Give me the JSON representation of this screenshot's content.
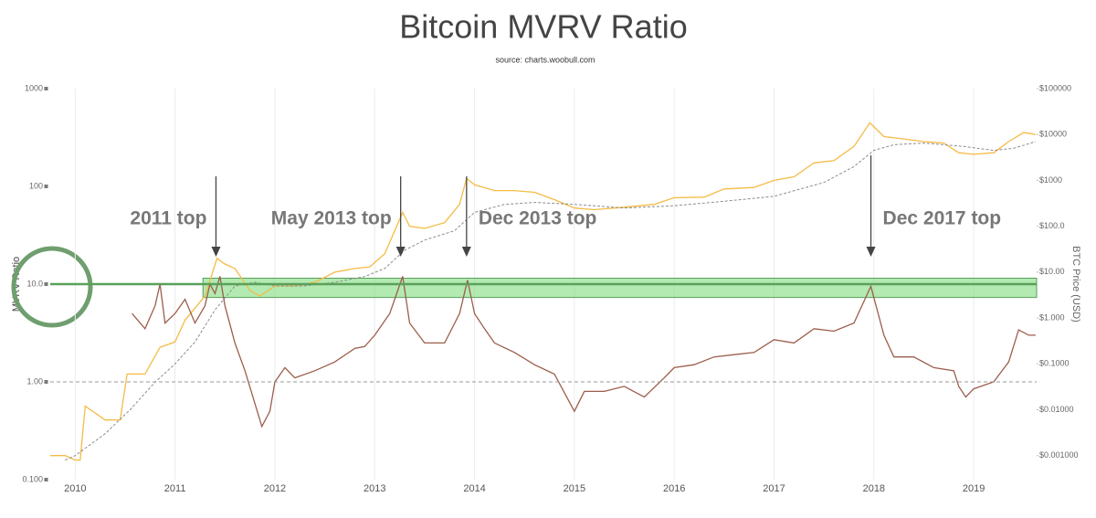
{
  "chart_data": {
    "type": "line",
    "title": "Bitcoin MVRV Ratio",
    "subtitle": "source: charts.woobull.com",
    "y_label": "MVRV Ratio",
    "y2_label": "BTC Price (USD)",
    "xlim": [
      2009.75,
      2019.63
    ],
    "xticks": [
      2010,
      2011,
      2012,
      2013,
      2014,
      2015,
      2016,
      2017,
      2018,
      2019
    ],
    "ylim": [
      0.1,
      1000
    ],
    "yticks": [
      1000,
      100,
      {
        "value": 10,
        "label": "10.0"
      },
      {
        "value": 1,
        "label": "1.00"
      },
      {
        "value": 0.1,
        "label": "0.100"
      }
    ],
    "y2lim": [
      0.0003,
      100000
    ],
    "y2ticks": [
      {
        "value": 100000,
        "label": "$100000"
      },
      {
        "value": 10000,
        "label": "$10000"
      },
      {
        "value": 1000,
        "label": "$1000"
      },
      {
        "value": 100,
        "label": "$100.0"
      },
      {
        "value": 10,
        "label": "$10.00"
      },
      {
        "value": 1,
        "label": "$1.000"
      },
      {
        "value": 0.1,
        "label": "$0.1000"
      },
      {
        "value": 0.01,
        "label": "$0.01000"
      },
      {
        "value": 0.001,
        "label": "$0.001000"
      }
    ],
    "log_scale": true,
    "grid": "x",
    "reference_lines": [
      {
        "value": 1,
        "color": "#999999",
        "dashed": true
      },
      {
        "value": 10,
        "color": "#5aa05a",
        "dashed": false
      }
    ],
    "highlight_band": {
      "x0": 2011.28,
      "range": [
        7.3,
        11.5
      ],
      "color": "#7fdc7f"
    },
    "annotations": [
      {
        "text": "2011 top",
        "x": 2011.41,
        "side": "left"
      },
      {
        "text": "May 2013 top",
        "x": 2013.26,
        "side": "left"
      },
      {
        "text": "Dec 2013 top",
        "x": 2013.92,
        "side": "right"
      },
      {
        "text": "Dec 2017 top",
        "x": 2017.97,
        "side": "right"
      }
    ],
    "series": [
      {
        "color": "#f5bb45",
        "axis": "y2",
        "dashed": false,
        "x": [
          2009.75,
          2009.9,
          2010.0,
          2010.05,
          2010.1,
          2010.3,
          2010.45,
          2010.52,
          2010.7,
          2010.85,
          2011.0,
          2011.1,
          2011.3,
          2011.42,
          2011.5,
          2011.6,
          2011.75,
          2011.85,
          2012.0,
          2012.2,
          2012.4,
          2012.6,
          2012.8,
          2012.95,
          2013.1,
          2013.28,
          2013.35,
          2013.5,
          2013.7,
          2013.85,
          2013.92,
          2014.0,
          2014.2,
          2014.4,
          2014.6,
          2014.8,
          2015.0,
          2015.2,
          2015.5,
          2015.8,
          2016.0,
          2016.3,
          2016.5,
          2016.8,
          2017.0,
          2017.2,
          2017.4,
          2017.6,
          2017.8,
          2017.96,
          2018.1,
          2018.3,
          2018.5,
          2018.7,
          2018.85,
          2019.0,
          2019.2,
          2019.35,
          2019.5,
          2019.62
        ],
        "values": [
          0.001,
          0.001,
          0.0008,
          0.0008,
          0.012,
          0.006,
          0.006,
          0.06,
          0.06,
          0.23,
          0.3,
          0.9,
          3,
          20,
          15,
          12,
          4,
          3,
          5,
          5,
          6,
          10,
          12,
          13,
          25,
          200,
          100,
          90,
          120,
          300,
          1100,
          800,
          600,
          600,
          550,
          380,
          250,
          230,
          260,
          300,
          420,
          430,
          650,
          700,
          1000,
          1200,
          2400,
          2700,
          5500,
          18000,
          9000,
          8000,
          7000,
          6500,
          4000,
          3700,
          4000,
          7000,
          11000,
          10000
        ]
      },
      {
        "color": "#8c8c8c",
        "axis": "y2",
        "dashed": true,
        "x": [
          2009.9,
          2010.0,
          2010.3,
          2010.55,
          2010.8,
          2011.0,
          2011.2,
          2011.4,
          2011.6,
          2011.8,
          2012.0,
          2012.3,
          2012.6,
          2012.9,
          2013.1,
          2013.3,
          2013.5,
          2013.8,
          2014.0,
          2014.3,
          2014.6,
          2015.0,
          2015.5,
          2016.0,
          2016.5,
          2017.0,
          2017.5,
          2017.8,
          2018.0,
          2018.2,
          2018.5,
          2018.9,
          2019.2,
          2019.4,
          2019.62
        ],
        "values": [
          0.0008,
          0.001,
          0.003,
          0.01,
          0.04,
          0.1,
          0.3,
          1.5,
          5,
          6,
          5,
          5,
          6,
          8,
          12,
          30,
          50,
          80,
          200,
          300,
          330,
          300,
          250,
          280,
          350,
          450,
          900,
          2000,
          4500,
          6000,
          6500,
          5500,
          4500,
          5000,
          7000
        ]
      },
      {
        "color": "#9b5e4c",
        "axis": "y",
        "dashed": false,
        "x": [
          2010.57,
          2010.7,
          2010.8,
          2010.85,
          2010.9,
          2011.0,
          2011.1,
          2011.2,
          2011.3,
          2011.35,
          2011.4,
          2011.45,
          2011.5,
          2011.6,
          2011.7,
          2011.8,
          2011.87,
          2011.95,
          2012.0,
          2012.1,
          2012.2,
          2012.4,
          2012.6,
          2012.8,
          2012.9,
          2013.0,
          2013.15,
          2013.28,
          2013.35,
          2013.5,
          2013.7,
          2013.85,
          2013.93,
          2014.0,
          2014.1,
          2014.2,
          2014.4,
          2014.6,
          2014.8,
          2015.0,
          2015.1,
          2015.3,
          2015.5,
          2015.7,
          2015.9,
          2016.0,
          2016.2,
          2016.4,
          2016.6,
          2016.8,
          2017.0,
          2017.2,
          2017.4,
          2017.6,
          2017.8,
          2017.97,
          2018.1,
          2018.2,
          2018.4,
          2018.6,
          2018.8,
          2018.85,
          2018.92,
          2019.0,
          2019.2,
          2019.35,
          2019.45,
          2019.55,
          2019.62
        ],
        "values": [
          5,
          3.5,
          6,
          10,
          4,
          5,
          7,
          4,
          6,
          10,
          8,
          12,
          6,
          2.5,
          1.3,
          0.6,
          0.35,
          0.5,
          1.0,
          1.4,
          1.1,
          1.3,
          1.6,
          2.2,
          2.3,
          3.0,
          5,
          12,
          4,
          2.5,
          2.5,
          5,
          11,
          5,
          3.5,
          2.5,
          2.0,
          1.5,
          1.2,
          0.5,
          0.8,
          0.8,
          0.9,
          0.7,
          1.1,
          1.4,
          1.5,
          1.8,
          1.9,
          2.0,
          2.7,
          2.5,
          3.5,
          3.3,
          4.0,
          9.5,
          3.0,
          1.8,
          1.8,
          1.4,
          1.3,
          0.9,
          0.7,
          0.85,
          1.0,
          1.6,
          3.4,
          3.0,
          3.0
        ]
      }
    ]
  }
}
